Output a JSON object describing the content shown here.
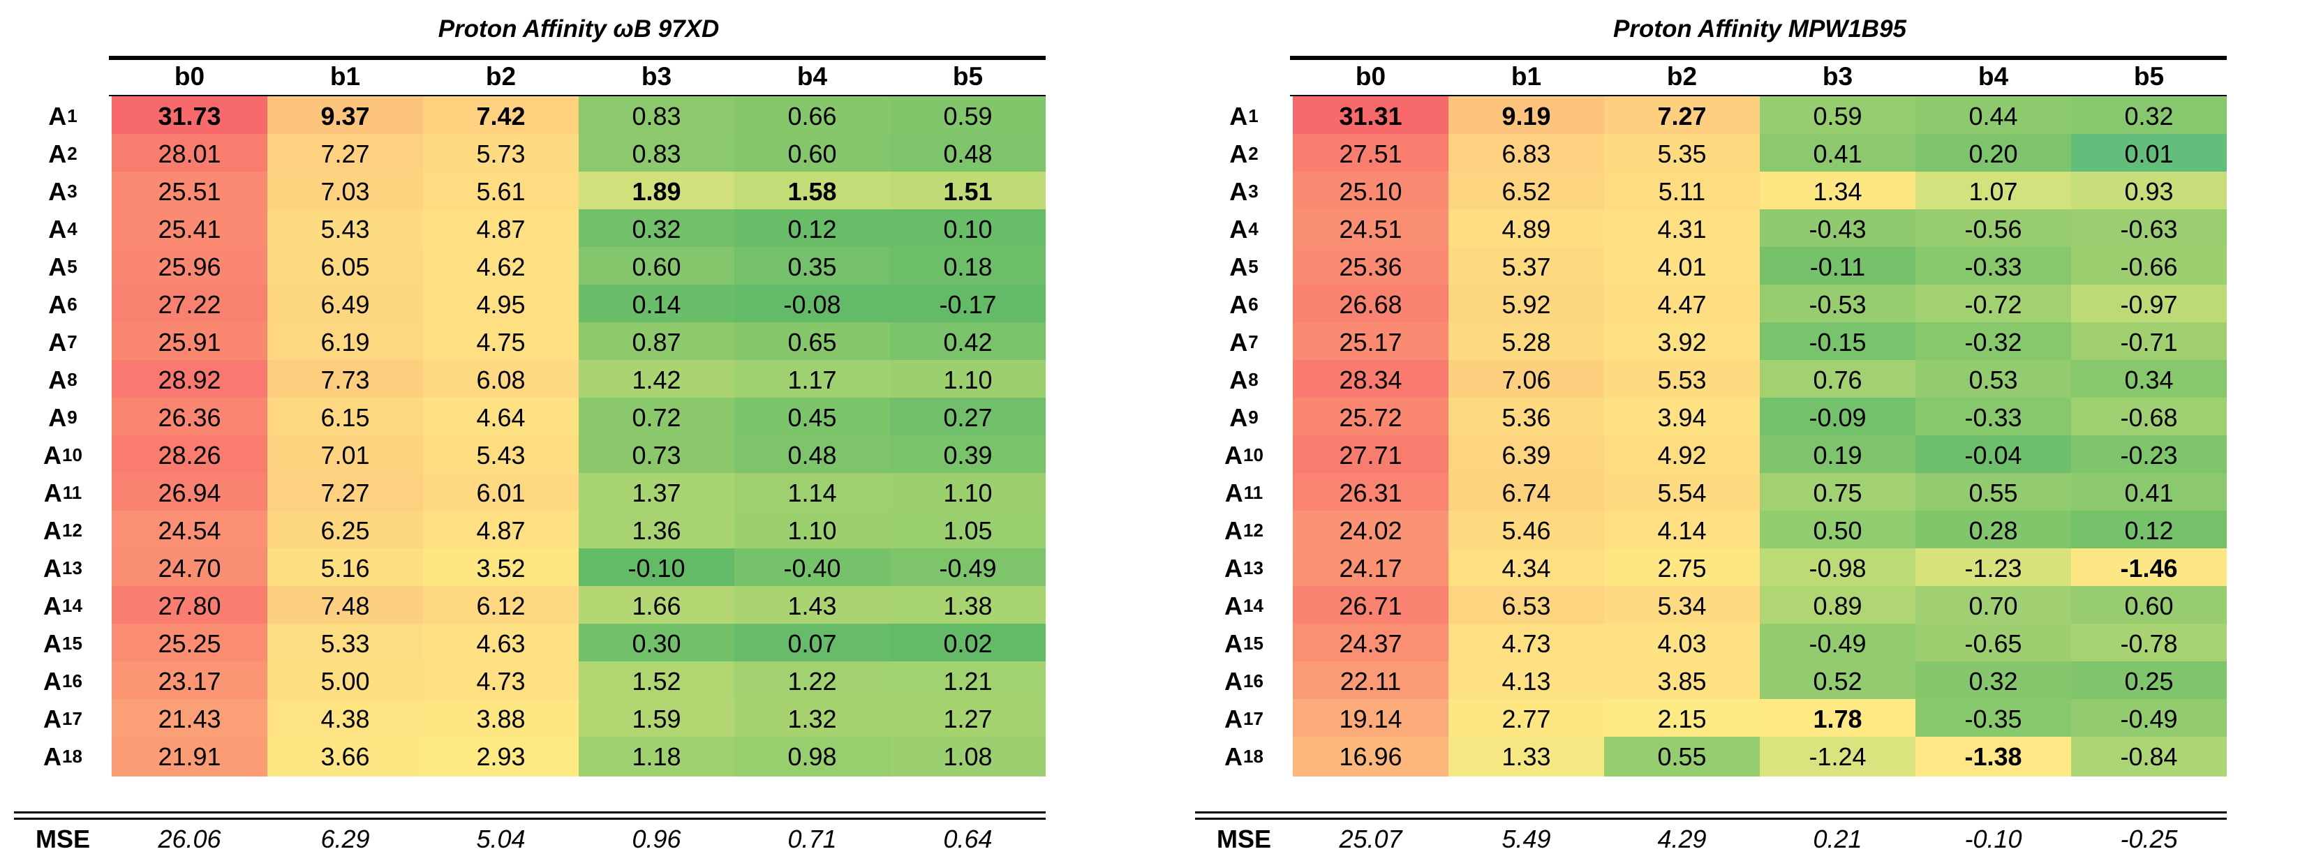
{
  "tables": [
    {
      "id": "wb97xd",
      "title": "Proton Affinity  ωB 97XD",
      "columns": [
        "b0",
        "b1",
        "b2",
        "b3",
        "b4",
        "b5"
      ],
      "row_prefix": "A",
      "rows": [
        {
          "idx": "1",
          "values": [
            "31.73",
            "9.37",
            "7.42",
            "0.83",
            "0.66",
            "0.59"
          ],
          "colors": [
            "#f8696b",
            "#fcc37c",
            "#fed17f",
            "#8cc96c",
            "#87c76b",
            "#82c66b"
          ],
          "bold": [
            true,
            true,
            true,
            false,
            false,
            false
          ]
        },
        {
          "idx": "2",
          "values": [
            "28.01",
            "7.27",
            "5.73",
            "0.83",
            "0.60",
            "0.48"
          ],
          "colors": [
            "#f97d6f",
            "#fdd17f",
            "#fedb81",
            "#8cc96c",
            "#84c66b",
            "#7ec46b"
          ],
          "bold": [
            false,
            false,
            false,
            false,
            false,
            false
          ]
        },
        {
          "idx": "3",
          "values": [
            "25.51",
            "7.03",
            "5.61",
            "1.89",
            "1.58",
            "1.51"
          ],
          "colors": [
            "#fa8a72",
            "#fdd37f",
            "#fedc81",
            "#d0e07a",
            "#c2dc77",
            "#bfdb76"
          ],
          "bold": [
            false,
            false,
            false,
            true,
            true,
            true
          ]
        },
        {
          "idx": "4",
          "values": [
            "25.41",
            "5.43",
            "4.87",
            "0.32",
            "0.12",
            "0.10"
          ],
          "colors": [
            "#fa8b72",
            "#fddc81",
            "#fee082",
            "#73c06a",
            "#69bd69",
            "#68bd69"
          ],
          "bold": [
            false,
            false,
            false,
            false,
            false,
            false
          ]
        },
        {
          "idx": "5",
          "values": [
            "25.96",
            "6.05",
            "4.62",
            "0.60",
            "0.35",
            "0.18"
          ],
          "colors": [
            "#fa8771",
            "#fdd980",
            "#fee182",
            "#84c66b",
            "#75c06a",
            "#6cbe69"
          ],
          "bold": [
            false,
            false,
            false,
            false,
            false,
            false
          ]
        },
        {
          "idx": "6",
          "values": [
            "27.22",
            "6.49",
            "4.95",
            "0.14",
            "-0.08",
            "-0.17"
          ],
          "colors": [
            "#f98170",
            "#fdd680",
            "#fedf81",
            "#6abd69",
            "#63bb68",
            "#63bb68"
          ],
          "bold": [
            false,
            false,
            false,
            false,
            false,
            false
          ]
        },
        {
          "idx": "7",
          "values": [
            "25.91",
            "6.19",
            "4.75",
            "0.87",
            "0.65",
            "0.42"
          ],
          "colors": [
            "#fa8871",
            "#fdd880",
            "#fee082",
            "#8eca6c",
            "#86c76b",
            "#7ac36a"
          ],
          "bold": [
            false,
            false,
            false,
            false,
            false,
            false
          ]
        },
        {
          "idx": "8",
          "values": [
            "28.92",
            "7.73",
            "6.08",
            "1.42",
            "1.17",
            "1.10"
          ],
          "colors": [
            "#f97870",
            "#fcce7e",
            "#fed981",
            "#aad471",
            "#a0d170",
            "#9cd06f"
          ],
          "bold": [
            false,
            false,
            false,
            false,
            false,
            false
          ]
        },
        {
          "idx": "9",
          "values": [
            "26.36",
            "6.15",
            "4.64",
            "0.72",
            "0.45",
            "0.27"
          ],
          "colors": [
            "#fa8571",
            "#fdd880",
            "#fee182",
            "#8ac86b",
            "#7bc46a",
            "#71bf6a"
          ],
          "bold": [
            false,
            false,
            false,
            false,
            false,
            false
          ]
        },
        {
          "idx": "10",
          "values": [
            "28.26",
            "7.01",
            "5.43",
            "0.73",
            "0.48",
            "0.39"
          ],
          "colors": [
            "#f97c6f",
            "#fdd37f",
            "#fedd81",
            "#8ac86b",
            "#7dc46b",
            "#79c36a"
          ],
          "bold": [
            false,
            false,
            false,
            false,
            false,
            false
          ]
        },
        {
          "idx": "11",
          "values": [
            "26.94",
            "7.27",
            "6.01",
            "1.37",
            "1.14",
            "1.10"
          ],
          "colors": [
            "#f98270",
            "#fdd17f",
            "#fed981",
            "#a8d471",
            "#9ed06f",
            "#9cd06f"
          ],
          "bold": [
            false,
            false,
            false,
            false,
            false,
            false
          ]
        },
        {
          "idx": "12",
          "values": [
            "24.54",
            "6.25",
            "4.87",
            "1.36",
            "1.10",
            "1.05"
          ],
          "colors": [
            "#fa8f73",
            "#fdd780",
            "#fee082",
            "#a7d371",
            "#9cd06f",
            "#9acf6f"
          ],
          "bold": [
            false,
            false,
            false,
            false,
            false,
            false
          ]
        },
        {
          "idx": "13",
          "values": [
            "24.70",
            "5.16",
            "3.52",
            "-0.10",
            "-0.40",
            "-0.49"
          ],
          "colors": [
            "#fa8e73",
            "#fdde81",
            "#fee783",
            "#63bb68",
            "#76c26a",
            "#7dc46b"
          ],
          "bold": [
            false,
            false,
            false,
            false,
            false,
            false
          ]
        },
        {
          "idx": "14",
          "values": [
            "27.80",
            "7.48",
            "6.12",
            "1.66",
            "1.43",
            "1.38"
          ],
          "colors": [
            "#f97e6f",
            "#fcd07f",
            "#fed880",
            "#b5d773",
            "#aad471",
            "#a8d471"
          ],
          "bold": [
            false,
            false,
            false,
            false,
            false,
            false
          ]
        },
        {
          "idx": "15",
          "values": [
            "25.25",
            "5.33",
            "4.63",
            "0.30",
            "0.07",
            "0.02"
          ],
          "colors": [
            "#fa8c72",
            "#fddd81",
            "#fee182",
            "#72c06a",
            "#66bc69",
            "#63bb68"
          ],
          "bold": [
            false,
            false,
            false,
            false,
            false,
            false
          ]
        },
        {
          "idx": "16",
          "values": [
            "23.17",
            "5.00",
            "4.73",
            "1.52",
            "1.22",
            "1.21"
          ],
          "colors": [
            "#fa9674",
            "#fddf81",
            "#fee082",
            "#b0d672",
            "#a2d270",
            "#a1d270"
          ],
          "bold": [
            false,
            false,
            false,
            false,
            false,
            false
          ]
        },
        {
          "idx": "17",
          "values": [
            "21.43",
            "4.38",
            "3.88",
            "1.59",
            "1.32",
            "1.27"
          ],
          "colors": [
            "#fb9f76",
            "#fee382",
            "#fee683",
            "#b2d672",
            "#a6d370",
            "#a4d370"
          ],
          "bold": [
            false,
            false,
            false,
            false,
            false,
            false
          ]
        },
        {
          "idx": "18",
          "values": [
            "21.91",
            "3.66",
            "2.93",
            "1.18",
            "0.98",
            "1.08"
          ],
          "colors": [
            "#fb9c75",
            "#fee683",
            "#feea83",
            "#a0d170",
            "#97ce6e",
            "#9bcf6f"
          ],
          "bold": [
            false,
            false,
            false,
            false,
            false,
            false
          ]
        }
      ],
      "summary": {
        "label": "MSE",
        "values": [
          "26.06",
          "6.29",
          "5.04",
          "0.96",
          "0.71",
          "0.64"
        ]
      }
    },
    {
      "id": "mpw1b95",
      "title": "Proton Affinity MPW1B95",
      "columns": [
        "b0",
        "b1",
        "b2",
        "b3",
        "b4",
        "b5"
      ],
      "row_prefix": "A",
      "rows": [
        {
          "idx": "1",
          "values": [
            "31.31",
            "9.19",
            "7.27",
            "0.59",
            "0.44",
            "0.32"
          ],
          "colors": [
            "#f8696b",
            "#fcc37c",
            "#fdcf7e",
            "#95cd6f",
            "#8dca6e",
            "#87c76d"
          ],
          "bold": [
            true,
            true,
            true,
            false,
            false,
            false
          ]
        },
        {
          "idx": "2",
          "values": [
            "27.51",
            "6.83",
            "5.35",
            "0.41",
            "0.20",
            "0.01"
          ],
          "colors": [
            "#f97e6f",
            "#fdd17f",
            "#fedb81",
            "#8cc96e",
            "#7dc46c",
            "#63be7b"
          ],
          "bold": [
            false,
            false,
            false,
            false,
            false,
            false
          ]
        },
        {
          "idx": "3",
          "values": [
            "25.10",
            "6.52",
            "5.11",
            "1.34",
            "1.07",
            "0.93"
          ],
          "colors": [
            "#fa8b72",
            "#fdd47f",
            "#fedd81",
            "#fce782",
            "#d4e27d",
            "#c7de7a"
          ],
          "bold": [
            false,
            false,
            false,
            false,
            false,
            false
          ]
        },
        {
          "idx": "4",
          "values": [
            "24.51",
            "4.89",
            "4.31",
            "-0.43",
            "-0.56",
            "-0.63"
          ],
          "colors": [
            "#fa8e73",
            "#fede81",
            "#fee082",
            "#8fca6e",
            "#97cd6f",
            "#9bce70"
          ],
          "bold": [
            false,
            false,
            false,
            false,
            false,
            false
          ]
        },
        {
          "idx": "5",
          "values": [
            "25.36",
            "5.37",
            "4.01",
            "-0.11",
            "-0.33",
            "-0.66"
          ],
          "colors": [
            "#fa8a72",
            "#fdda80",
            "#fee182",
            "#75c26b",
            "#88c86d",
            "#9dcf70"
          ],
          "bold": [
            false,
            false,
            false,
            false,
            false,
            false
          ]
        },
        {
          "idx": "6",
          "values": [
            "26.68",
            "5.92",
            "4.47",
            "-0.53",
            "-0.72",
            "-0.97"
          ],
          "colors": [
            "#f98370",
            "#fdd780",
            "#fede81",
            "#95cd6f",
            "#a2d171",
            "#bcdb77"
          ],
          "bold": [
            false,
            false,
            false,
            false,
            false,
            false
          ]
        },
        {
          "idx": "7",
          "values": [
            "25.17",
            "5.28",
            "3.92",
            "-0.15",
            "-0.32",
            "-0.71"
          ],
          "colors": [
            "#fa8b72",
            "#fdda80",
            "#fee182",
            "#78c36b",
            "#87c86d",
            "#a1d071"
          ],
          "bold": [
            false,
            false,
            false,
            false,
            false,
            false
          ]
        },
        {
          "idx": "8",
          "values": [
            "28.34",
            "7.06",
            "5.53",
            "0.76",
            "0.53",
            "0.34"
          ],
          "colors": [
            "#f97a6f",
            "#fdd07f",
            "#feda81",
            "#a3d171",
            "#92cc6f",
            "#88c86d"
          ],
          "bold": [
            false,
            false,
            false,
            false,
            false,
            false
          ]
        },
        {
          "idx": "9",
          "values": [
            "25.72",
            "5.36",
            "3.94",
            "-0.09",
            "-0.33",
            "-0.68"
          ],
          "colors": [
            "#fa8871",
            "#fdda80",
            "#fee182",
            "#73c16b",
            "#88c86d",
            "#9ecf70"
          ],
          "bold": [
            false,
            false,
            false,
            false,
            false,
            false
          ]
        },
        {
          "idx": "10",
          "values": [
            "27.71",
            "6.39",
            "4.92",
            "0.19",
            "-0.04",
            "-0.23"
          ],
          "colors": [
            "#f97d6f",
            "#fdd47f",
            "#fedd81",
            "#7dc46c",
            "#6ebf6b",
            "#7fc56c"
          ],
          "bold": [
            false,
            false,
            false,
            false,
            false,
            false
          ]
        },
        {
          "idx": "11",
          "values": [
            "26.31",
            "6.74",
            "5.54",
            "0.75",
            "0.55",
            "0.41"
          ],
          "colors": [
            "#fa8471",
            "#fdd27f",
            "#feda81",
            "#a2d171",
            "#93cc6f",
            "#8cc96e"
          ],
          "bold": [
            false,
            false,
            false,
            false,
            false,
            false
          ]
        },
        {
          "idx": "12",
          "values": [
            "24.02",
            "5.46",
            "4.14",
            "0.50",
            "0.28",
            "0.12"
          ],
          "colors": [
            "#fa9274",
            "#fdd980",
            "#fee082",
            "#91cc6f",
            "#82c66c",
            "#75c26b"
          ],
          "bold": [
            false,
            false,
            false,
            false,
            false,
            false
          ]
        },
        {
          "idx": "13",
          "values": [
            "24.17",
            "4.34",
            "2.75",
            "-0.98",
            "-1.23",
            "-1.46"
          ],
          "colors": [
            "#fa9173",
            "#fee082",
            "#fee783",
            "#bcdb77",
            "#d9e37d",
            "#fde784"
          ],
          "bold": [
            false,
            false,
            false,
            false,
            false,
            true
          ]
        },
        {
          "idx": "14",
          "values": [
            "26.71",
            "6.53",
            "5.34",
            "0.89",
            "0.70",
            "0.60"
          ],
          "colors": [
            "#f98370",
            "#fdd47f",
            "#fedb81",
            "#b0d674",
            "#a0d071",
            "#97cd6f"
          ],
          "bold": [
            false,
            false,
            false,
            false,
            false,
            false
          ]
        },
        {
          "idx": "15",
          "values": [
            "24.37",
            "4.73",
            "4.03",
            "-0.49",
            "-0.65",
            "-0.78"
          ],
          "colors": [
            "#fa8f73",
            "#fedf81",
            "#fee182",
            "#93cc6f",
            "#9dcf70",
            "#a7d372"
          ],
          "bold": [
            false,
            false,
            false,
            false,
            false,
            false
          ]
        },
        {
          "idx": "16",
          "values": [
            "22.11",
            "4.13",
            "3.85",
            "0.52",
            "0.32",
            "0.25"
          ],
          "colors": [
            "#fb9b75",
            "#fee182",
            "#fee282",
            "#92cc6f",
            "#86c76d",
            "#80c56c"
          ],
          "bold": [
            false,
            false,
            false,
            false,
            false,
            false
          ]
        },
        {
          "idx": "17",
          "values": [
            "19.14",
            "2.77",
            "2.15",
            "1.78",
            "-0.35",
            "-0.49"
          ],
          "colors": [
            "#fbab79",
            "#fee783",
            "#feea84",
            "#ffe984",
            "#89c96e",
            "#93cc6f"
          ],
          "bold": [
            false,
            false,
            false,
            true,
            false,
            false
          ]
        },
        {
          "idx": "18",
          "values": [
            "16.96",
            "1.33",
            "0.55",
            "-1.24",
            "-1.38",
            "-0.84"
          ],
          "colors": [
            "#fcb77b",
            "#f5e883",
            "#95cd6f",
            "#dae47e",
            "#fee784",
            "#acd573"
          ],
          "bold": [
            false,
            false,
            false,
            false,
            true,
            false
          ]
        }
      ],
      "summary": {
        "label": "MSE",
        "values": [
          "25.07",
          "5.49",
          "4.29",
          "0.21",
          "-0.10",
          "-0.25"
        ]
      }
    }
  ]
}
